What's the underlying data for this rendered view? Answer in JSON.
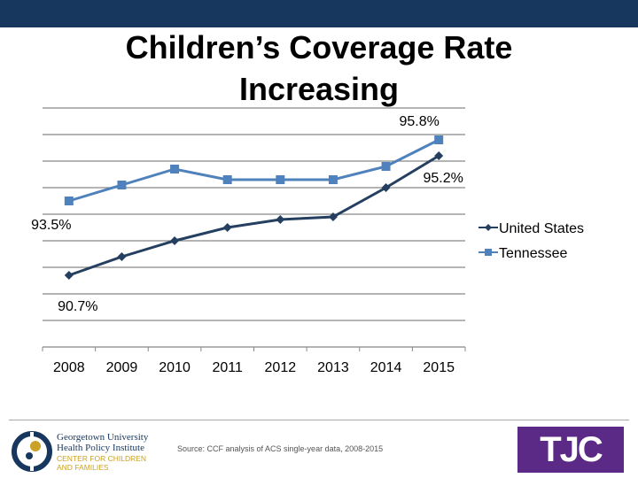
{
  "title": "Children’s Coverage Rate Increasing",
  "chart_data": {
    "type": "line",
    "title": "Children’s Coverage Rate Increasing",
    "categories": [
      "2008",
      "2009",
      "2010",
      "2011",
      "2012",
      "2013",
      "2014",
      "2015"
    ],
    "series": [
      {
        "name": "United States",
        "color": "#243f60",
        "marker": "diamond",
        "values": [
          90.7,
          91.4,
          92.0,
          92.5,
          92.8,
          92.9,
          94.0,
          95.2
        ]
      },
      {
        "name": "Tennessee",
        "color": "#4f81bd",
        "marker": "square",
        "values": [
          93.5,
          94.1,
          94.7,
          94.3,
          94.3,
          94.3,
          94.8,
          95.8
        ]
      }
    ],
    "data_labels": [
      {
        "series": "Tennessee",
        "category": "2008",
        "text": "93.5%"
      },
      {
        "series": "Tennessee",
        "category": "2015",
        "text": "95.8%"
      },
      {
        "series": "United States",
        "category": "2008",
        "text": "90.7%"
      },
      {
        "series": "United States",
        "category": "2015",
        "text": "95.2%"
      }
    ],
    "ylim": [
      88,
      97
    ],
    "y_tick_labels_shown": false,
    "grid": true,
    "legend": "right"
  },
  "footer": {
    "source": "Source: CCF analysis of ACS single-year data, 2008-2015",
    "logo_left": {
      "line1": "Georgetown University",
      "line2": "Health Policy Institute",
      "line3": "CENTER FOR CHILDREN",
      "line4": "AND FAMILIES"
    },
    "logo_right": "TJC"
  }
}
